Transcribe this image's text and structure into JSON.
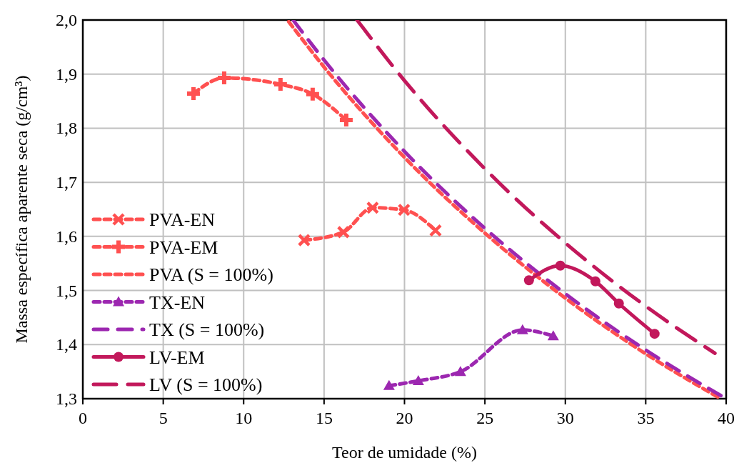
{
  "chart_data": {
    "type": "line",
    "xlabel": "Teor de umidade (%)",
    "ylabel": "Massa específica aparente seca (g/cm³)",
    "xlim": [
      0,
      40
    ],
    "xticks": [
      0,
      5,
      10,
      15,
      20,
      25,
      30,
      35,
      40
    ],
    "ylim": [
      1.3,
      2.0
    ],
    "yticks": [
      {
        "value": 1.3,
        "label": "1,3"
      },
      {
        "value": 1.4,
        "label": "1,4"
      },
      {
        "value": 1.5,
        "label": "1,5"
      },
      {
        "value": 1.6,
        "label": "1,6"
      },
      {
        "value": 1.7,
        "label": "1,7"
      },
      {
        "value": 1.8,
        "label": "1,8"
      },
      {
        "value": 1.9,
        "label": "1,9"
      },
      {
        "value": 2.0,
        "label": "2,0"
      }
    ],
    "grid": true,
    "legend": "bottom left",
    "series": [
      {
        "name": "PVA-EN",
        "color": "#ff5050",
        "marker": "cross",
        "line_style": "dashed",
        "x": [
          13.76,
          16.2,
          18.02,
          19.97,
          21.93
        ],
        "values": [
          1.593,
          1.608,
          1.653,
          1.649,
          1.611
        ]
      },
      {
        "name": "PVA-EM",
        "color": "#ff5050",
        "marker": "plus",
        "line_style": "dashed",
        "x": [
          6.88,
          8.79,
          12.29,
          14.29,
          16.38
        ],
        "values": [
          1.864,
          1.893,
          1.881,
          1.863,
          1.815
        ]
      },
      {
        "name": "PVA (S = 100%)",
        "color": "#ff5050",
        "marker": "none",
        "line_style": "dashed",
        "x": [
          12.8,
          15,
          20,
          25,
          30,
          35,
          39.6
        ],
        "values": [
          1.997,
          1.913,
          1.746,
          1.606,
          1.486,
          1.383,
          1.301
        ]
      },
      {
        "name": "TX-EN",
        "color": "#9c27b0",
        "marker": "triangle",
        "line_style": "dashed",
        "x": [
          19.04,
          20.86,
          23.48,
          27.34,
          29.25
        ],
        "values": [
          1.324,
          1.333,
          1.35,
          1.427,
          1.416
        ]
      },
      {
        "name": "TX (S = 100%)",
        "color": "#9c27b0",
        "marker": "none",
        "line_style": "dashed",
        "x": [
          13.1,
          15,
          20,
          25,
          30,
          35,
          40
        ],
        "values": [
          1.999,
          1.926,
          1.757,
          1.615,
          1.494,
          1.39,
          1.3
        ]
      },
      {
        "name": "LV-EM",
        "color": "#c2185b",
        "marker": "circle",
        "line_style": "solid",
        "x": [
          27.74,
          29.69,
          31.87,
          33.33,
          35.55
        ],
        "values": [
          1.519,
          1.546,
          1.517,
          1.476,
          1.42
        ]
      },
      {
        "name": "LV (S = 100%)",
        "color": "#c2185b",
        "marker": "none",
        "line_style": "dashed",
        "x": [
          17.05,
          20,
          25,
          30,
          35,
          39.3
        ],
        "values": [
          2.0,
          1.888,
          1.725,
          1.588,
          1.471,
          1.384
        ]
      }
    ]
  }
}
